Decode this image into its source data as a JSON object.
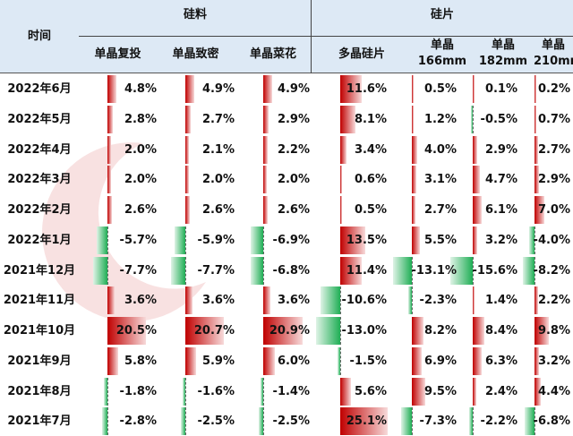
{
  "header": {
    "time": "时间",
    "groups": [
      "硅料",
      "硅片"
    ],
    "columns": [
      [
        "单晶复投"
      ],
      [
        "单晶致密"
      ],
      [
        "单晶菜花"
      ],
      [
        "多晶硅片"
      ],
      [
        "单晶",
        "166mm"
      ],
      [
        "单晶",
        "182mm"
      ],
      [
        "单晶",
        "210mm"
      ]
    ]
  },
  "watermark": {
    "cn": "索比咨询",
    "en": "SOLARBE CONSULTING"
  },
  "colors": {
    "positive": "#c00000",
    "negative": "#1fae55",
    "header_bg": "#dde9f5"
  },
  "chart_data": {
    "type": "table",
    "columns": [
      "单晶复投",
      "单晶致密",
      "单晶菜花",
      "多晶硅片",
      "单晶166mm",
      "单晶182mm",
      "单晶210mm"
    ],
    "rows": [
      {
        "time": "2022年6月",
        "values": [
          "4.8%",
          "4.9%",
          "4.9%",
          "11.6%",
          "0.5%",
          "0.1%",
          "0.2%"
        ]
      },
      {
        "time": "2022年5月",
        "values": [
          "2.8%",
          "2.7%",
          "2.9%",
          "8.1%",
          "1.2%",
          "-0.5%",
          "0.7%"
        ]
      },
      {
        "time": "2022年4月",
        "values": [
          "2.0%",
          "2.1%",
          "2.2%",
          "3.4%",
          "4.0%",
          "2.9%",
          "2.7%"
        ]
      },
      {
        "time": "2022年3月",
        "values": [
          "2.0%",
          "2.0%",
          "2.0%",
          "0.6%",
          "3.1%",
          "4.7%",
          "2.9%"
        ]
      },
      {
        "time": "2022年2月",
        "values": [
          "2.6%",
          "2.6%",
          "2.6%",
          "0.5%",
          "2.7%",
          "6.1%",
          "7.0%"
        ]
      },
      {
        "time": "2022年1月",
        "values": [
          "-5.7%",
          "-5.9%",
          "-6.9%",
          "13.5%",
          "5.5%",
          "3.2%",
          "-4.0%"
        ]
      },
      {
        "time": "2021年12月",
        "values": [
          "-7.7%",
          "-7.7%",
          "-6.8%",
          "11.4%",
          "-13.1%",
          "-15.6%",
          "-8.2%"
        ]
      },
      {
        "time": "2021年11月",
        "values": [
          "3.6%",
          "3.6%",
          "3.6%",
          "-10.6%",
          "-2.3%",
          "1.4%",
          "2.2%"
        ]
      },
      {
        "time": "2021年10月",
        "values": [
          "20.5%",
          "20.7%",
          "20.9%",
          "-13.0%",
          "8.2%",
          "8.4%",
          "9.8%"
        ]
      },
      {
        "time": "2021年9月",
        "values": [
          "5.8%",
          "5.9%",
          "6.0%",
          "-1.5%",
          "6.9%",
          "6.3%",
          "3.2%"
        ]
      },
      {
        "time": "2021年8月",
        "values": [
          "-1.8%",
          "-1.6%",
          "-1.4%",
          "5.6%",
          "9.5%",
          "2.4%",
          "4.4%"
        ]
      },
      {
        "time": "2021年7月",
        "values": [
          "-2.8%",
          "-2.5%",
          "-2.5%",
          "25.1%",
          "-7.3%",
          "-2.2%",
          "-6.8%"
        ]
      }
    ]
  }
}
